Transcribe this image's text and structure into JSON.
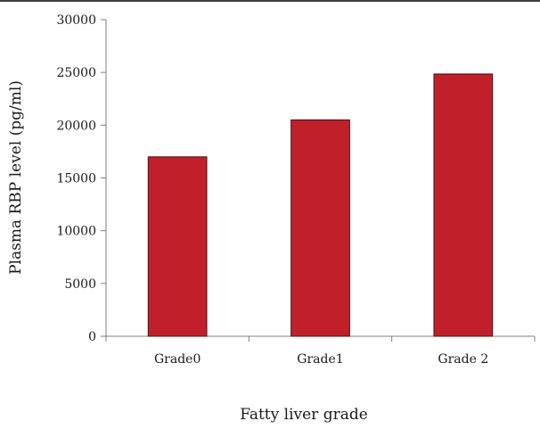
{
  "chart_data": {
    "type": "bar",
    "title": "",
    "categories": [
      "Grade0",
      "Grade1",
      "Grade 2"
    ],
    "series": [
      {
        "values": [
          17000,
          20500,
          24850
        ]
      }
    ],
    "xlabel": "Fatty liver grade",
    "ylabel": "Plasma RBP level (pg/ml)",
    "ylim": [
      0,
      30000
    ],
    "yticks": [
      0,
      5000,
      10000,
      15000,
      20000,
      25000,
      30000
    ],
    "grid": false,
    "legend": "none",
    "colors": {
      "bar_fill": "#c0202a",
      "bar_stroke": "#4a1010",
      "axis": "#7f7f7f",
      "top_rule": "#000000"
    }
  }
}
